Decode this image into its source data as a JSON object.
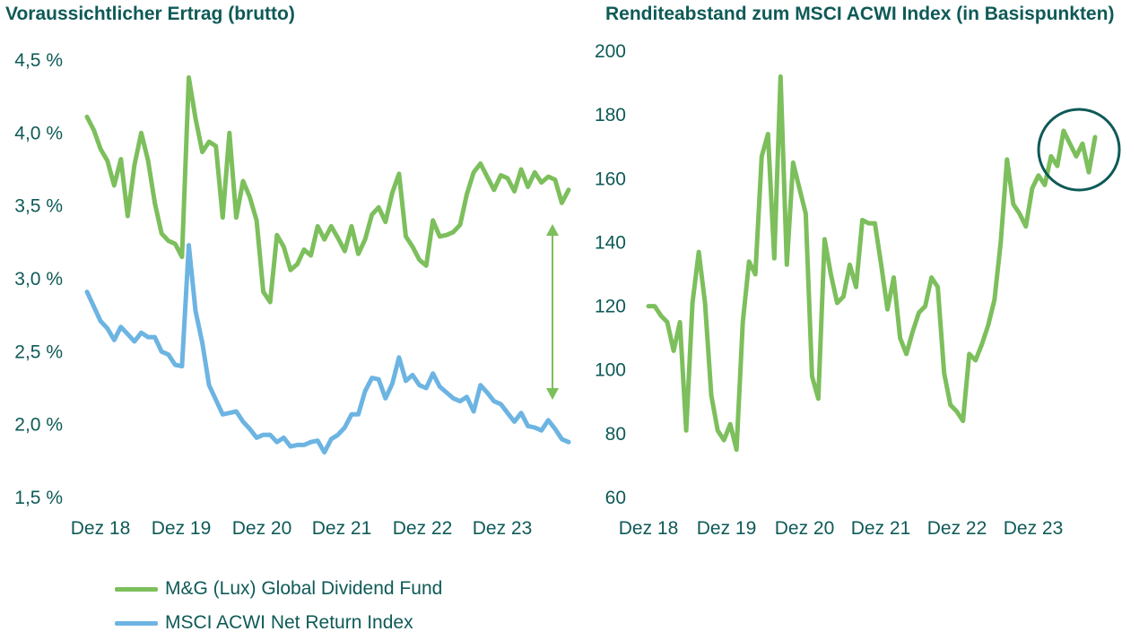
{
  "colors": {
    "fund": "#7cbf5c",
    "index": "#6cb4e2",
    "text": "#0e5a57",
    "highlight_circle": "#0e5a57"
  },
  "legend": {
    "fund_label": "M&G (Lux) Global Dividend Fund",
    "index_label": "MSCI ACWI Net Return Index"
  },
  "chart_data": [
    {
      "type": "line",
      "title": "Voraussichtlicher Ertrag (brutto)",
      "x_tick_labels": [
        "Dez 18",
        "Dez 19",
        "Dez 20",
        "Dez 21",
        "Dez 22",
        "Dez 23"
      ],
      "y_tick_labels": [
        "4,5 %",
        "4,0 %",
        "3,5 %",
        "3,0 %",
        "2,5 %",
        "2,0 %",
        "1,5 %"
      ],
      "ylim": [
        1.5,
        4.5
      ],
      "y_ticks": [
        4.5,
        4.0,
        3.5,
        3.0,
        2.5,
        2.0,
        1.5
      ],
      "grid": false,
      "legend_position": "bottom-left",
      "annotation": "double-headed arrow between the two series near the latest data",
      "series": [
        {
          "name": "M&G (Lux) Global Dividend Fund",
          "color_key": "fund",
          "values": [
            4.11,
            4.02,
            3.89,
            3.81,
            3.64,
            3.82,
            3.43,
            3.78,
            4.0,
            3.81,
            3.52,
            3.31,
            3.26,
            3.24,
            3.15,
            4.38,
            4.1,
            3.87,
            3.94,
            3.91,
            3.42,
            4.0,
            3.42,
            3.67,
            3.56,
            3.4,
            2.91,
            2.84,
            3.3,
            3.22,
            3.06,
            3.1,
            3.2,
            3.16,
            3.36,
            3.27,
            3.36,
            3.28,
            3.19,
            3.36,
            3.17,
            3.27,
            3.44,
            3.49,
            3.39,
            3.59,
            3.72,
            3.29,
            3.22,
            3.13,
            3.09,
            3.4,
            3.29,
            3.3,
            3.32,
            3.37,
            3.58,
            3.73,
            3.79,
            3.7,
            3.61,
            3.71,
            3.69,
            3.6,
            3.75,
            3.63,
            3.73,
            3.66,
            3.7,
            3.68,
            3.52,
            3.61
          ]
        },
        {
          "name": "MSCI ACWI Net Return Index",
          "color_key": "index",
          "values": [
            2.91,
            2.81,
            2.71,
            2.66,
            2.58,
            2.67,
            2.62,
            2.57,
            2.63,
            2.6,
            2.6,
            2.5,
            2.48,
            2.41,
            2.4,
            3.23,
            2.78,
            2.56,
            2.27,
            2.17,
            2.07,
            2.08,
            2.09,
            2.02,
            1.97,
            1.91,
            1.93,
            1.93,
            1.88,
            1.91,
            1.85,
            1.86,
            1.86,
            1.88,
            1.89,
            1.81,
            1.9,
            1.93,
            1.98,
            2.07,
            2.07,
            2.23,
            2.32,
            2.31,
            2.18,
            2.28,
            2.46,
            2.3,
            2.34,
            2.27,
            2.25,
            2.35,
            2.26,
            2.22,
            2.18,
            2.16,
            2.19,
            2.09,
            2.27,
            2.22,
            2.16,
            2.14,
            2.08,
            2.02,
            2.08,
            1.99,
            1.98,
            1.96,
            2.03,
            1.97,
            1.9,
            1.88
          ]
        }
      ]
    },
    {
      "type": "line",
      "title": "Renditeabstand zum MSCI ACWI Index (in Basispunkten)",
      "x_tick_labels": [
        "Dez 18",
        "Dez 19",
        "Dez 20",
        "Dez 21",
        "Dez 22",
        "Dez 23"
      ],
      "y_tick_labels": [
        "200",
        "180",
        "160",
        "140",
        "120",
        "100",
        "80",
        "60"
      ],
      "ylim": [
        60,
        200
      ],
      "y_ticks": [
        200,
        180,
        160,
        140,
        120,
        100,
        80,
        60
      ],
      "grid": false,
      "annotation": "circle highlighting the most recent values",
      "series": [
        {
          "color_key": "fund",
          "values": [
            120,
            120,
            117,
            115,
            106,
            115,
            81,
            121,
            137,
            121,
            92,
            81,
            78,
            83,
            75,
            115,
            134,
            130,
            167,
            174,
            135,
            192,
            133,
            165,
            157,
            149,
            98,
            91,
            141,
            130,
            121,
            123,
            133,
            126,
            147,
            146,
            146,
            133,
            119,
            129,
            110,
            105,
            112,
            118,
            120,
            129,
            126,
            99,
            89,
            87,
            84,
            105,
            103,
            108,
            114,
            122,
            140,
            166,
            152,
            149,
            145,
            157,
            161,
            158,
            167,
            164,
            175,
            171,
            167,
            171,
            162,
            173
          ]
        }
      ]
    }
  ]
}
